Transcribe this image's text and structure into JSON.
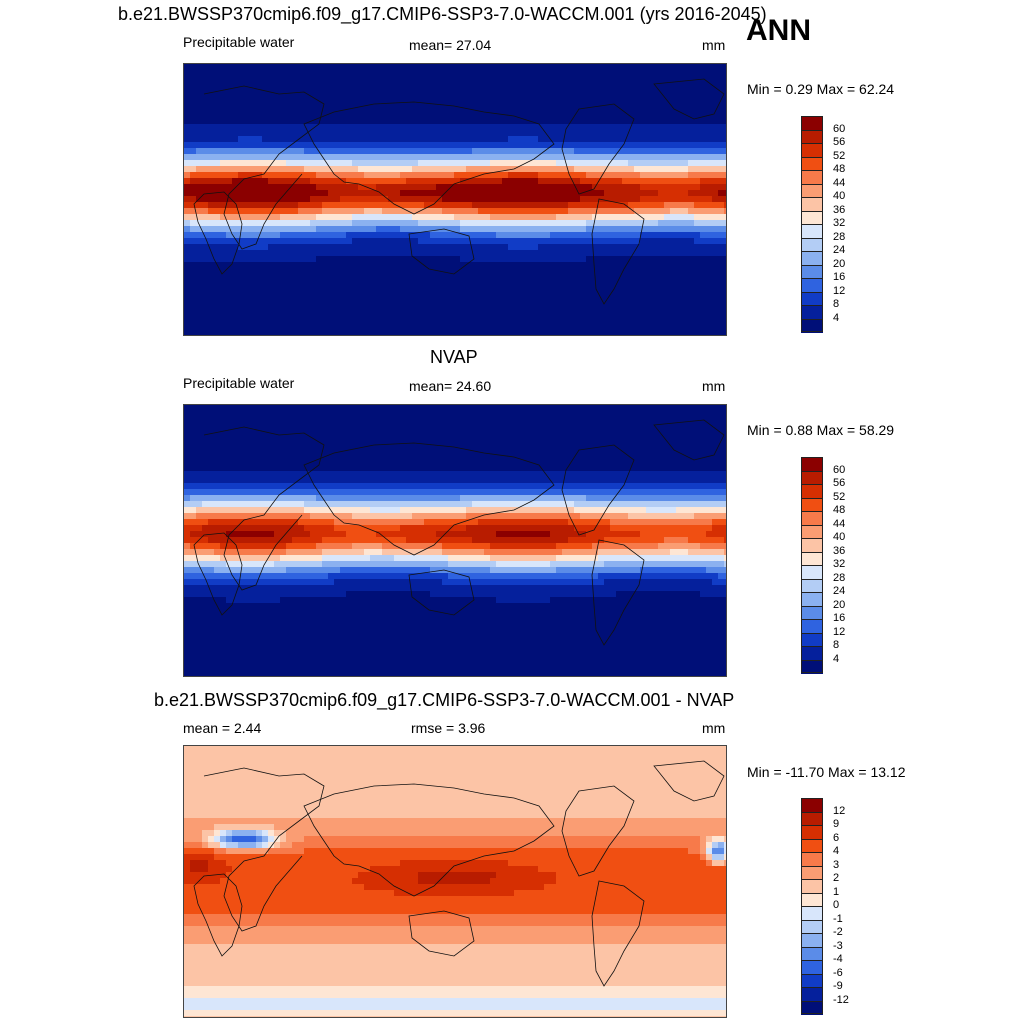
{
  "panels": [
    {
      "title": "b.e21.BWSSP370cmip6.f09_g17.CMIP6-SSP3-7.0-WACCM.001 (yrs 2016-2045)",
      "season": "ANN",
      "var_label": "Precipitable water",
      "stat_left": "",
      "stat_mid": "mean=  27.04",
      "units": "mm",
      "minmax": "Min =   0.29 Max =  62.24",
      "levels": [
        "60",
        "56",
        "52",
        "48",
        "44",
        "40",
        "36",
        "32",
        "28",
        "24",
        "20",
        "16",
        "12",
        "8",
        "4"
      ],
      "colors": [
        "#8b0000",
        "#b81c00",
        "#d62f02",
        "#f04f12",
        "#f77a4a",
        "#fa9d73",
        "#fcc4a6",
        "#fee6d4",
        "#d8e6fb",
        "#b3cdf5",
        "#8bb1f0",
        "#5b8ce8",
        "#2f63e0",
        "#113cc6",
        "#05209c",
        "#000f78"
      ]
    },
    {
      "title": "NVAP",
      "season": "",
      "var_label": "Precipitable water",
      "stat_left": "",
      "stat_mid": "mean=  24.60",
      "units": "mm",
      "minmax": "Min =   0.88 Max =  58.29",
      "levels": [
        "60",
        "56",
        "52",
        "48",
        "44",
        "40",
        "36",
        "32",
        "28",
        "24",
        "20",
        "16",
        "12",
        "8",
        "4"
      ],
      "colors": [
        "#8b0000",
        "#b81c00",
        "#d62f02",
        "#f04f12",
        "#f77a4a",
        "#fa9d73",
        "#fcc4a6",
        "#fee6d4",
        "#d8e6fb",
        "#b3cdf5",
        "#8bb1f0",
        "#5b8ce8",
        "#2f63e0",
        "#113cc6",
        "#05209c",
        "#000f78"
      ]
    },
    {
      "title": "b.e21.BWSSP370cmip6.f09_g17.CMIP6-SSP3-7.0-WACCM.001 - NVAP",
      "season": "",
      "var_label": "",
      "stat_left": "mean =   2.44",
      "stat_mid": "rmse =   3.96",
      "units": "mm",
      "minmax": "Min = -11.70 Max =  13.12",
      "levels": [
        "12",
        "9",
        "6",
        "4",
        "3",
        "2",
        "1",
        "0",
        "-1",
        "-2",
        "-3",
        "-4",
        "-6",
        "-9",
        "-12"
      ],
      "colors": [
        "#8b0000",
        "#b81c00",
        "#d62f02",
        "#f04f12",
        "#f77a4a",
        "#fa9d73",
        "#fcc4a6",
        "#fee6d4",
        "#d8e6fb",
        "#b3cdf5",
        "#8bb1f0",
        "#5b8ce8",
        "#2f63e0",
        "#113cc6",
        "#05209c",
        "#000f78"
      ]
    }
  ]
}
